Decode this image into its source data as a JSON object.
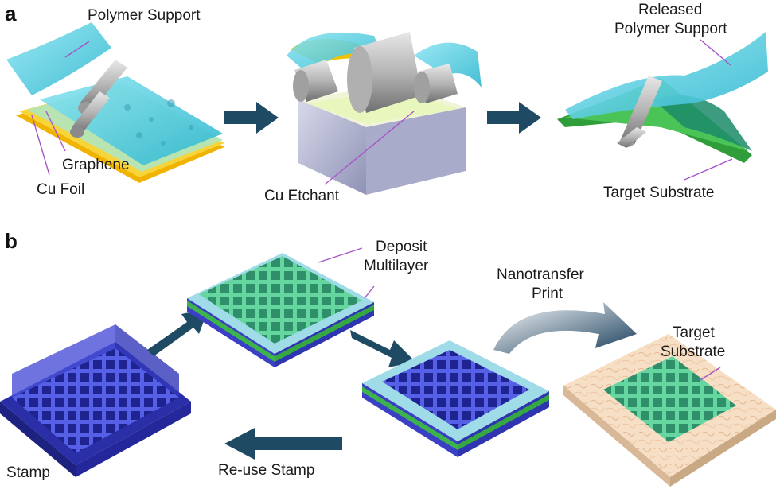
{
  "panel_a": {
    "letter": "a",
    "labels": {
      "polymer_support": "Polymer Support",
      "graphene": "Graphene",
      "cu_foil": "Cu Foil",
      "cu_etchant": "Cu Etchant",
      "released_line1": "Released",
      "released_line2": "Polymer Support",
      "target_substrate": "Target Substrate"
    }
  },
  "panel_b": {
    "letter": "b",
    "labels": {
      "deposit": "Deposit",
      "multilayer": "Multilayer",
      "nanotransfer": "Nanotransfer",
      "print": "Print",
      "target": "Target",
      "substrate": "Substrate",
      "stamp": "Stamp",
      "reuse_stamp": "Re-use Stamp"
    }
  },
  "colors": {
    "polymer": "#5fd0e6",
    "copper": "#f2c200",
    "graphene": "#3cb44b",
    "stamp": "#3a3fc4",
    "arrow": "#1f4a63",
    "leader": "#a855c8",
    "target": "#f6dfc4"
  }
}
